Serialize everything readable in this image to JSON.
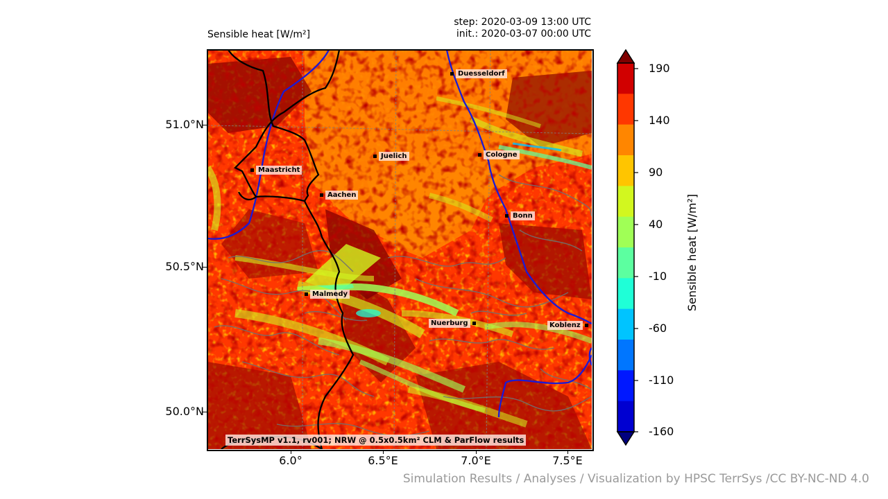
{
  "title_left": "Sensible heat [W/m²]",
  "step_text": "step: 2020-03-09 13:00 UTC",
  "init_text": "init.: 2020-03-07 00:00 UTC",
  "y_ticks": [
    "51.0°N",
    "50.5°N",
    "50.0°N"
  ],
  "x_ticks": [
    "6.0°",
    "6.5°E",
    "7.0°E",
    "7.5°E"
  ],
  "cities": [
    {
      "name": "Duesseldorf",
      "dot": "left"
    },
    {
      "name": "Juelich",
      "dot": "left"
    },
    {
      "name": "Cologne",
      "dot": "left"
    },
    {
      "name": "Maastricht",
      "dot": "left"
    },
    {
      "name": "Aachen",
      "dot": "left"
    },
    {
      "name": "Bonn",
      "dot": "left"
    },
    {
      "name": "Malmedy",
      "dot": "left"
    },
    {
      "name": "Nuerburg",
      "dot": "right"
    },
    {
      "name": "Koblenz",
      "dot": "right"
    }
  ],
  "model_credit": "TerrSysMP v1.1, rv001; NRW @ 0.5x0.5km² CLM & ParFlow results",
  "colorbar": {
    "label": "Sensible heat [W/m²]",
    "tick_labels": [
      "190",
      "140",
      "90",
      "40",
      "-10",
      "-60",
      "-110",
      "-160"
    ],
    "colors": [
      "#7f0000",
      "#d10000",
      "#ff3700",
      "#ff8600",
      "#ffc500",
      "#d2f71f",
      "#a0ff56",
      "#5cffa0",
      "#1fffd7",
      "#00c4ff",
      "#0076ff",
      "#0018ff",
      "#0000d1",
      "#00007f"
    ]
  },
  "footer": "Simulation Results / Analyses / Visualization by HPSC TerrSys /CC BY-NC-ND 4.0"
}
